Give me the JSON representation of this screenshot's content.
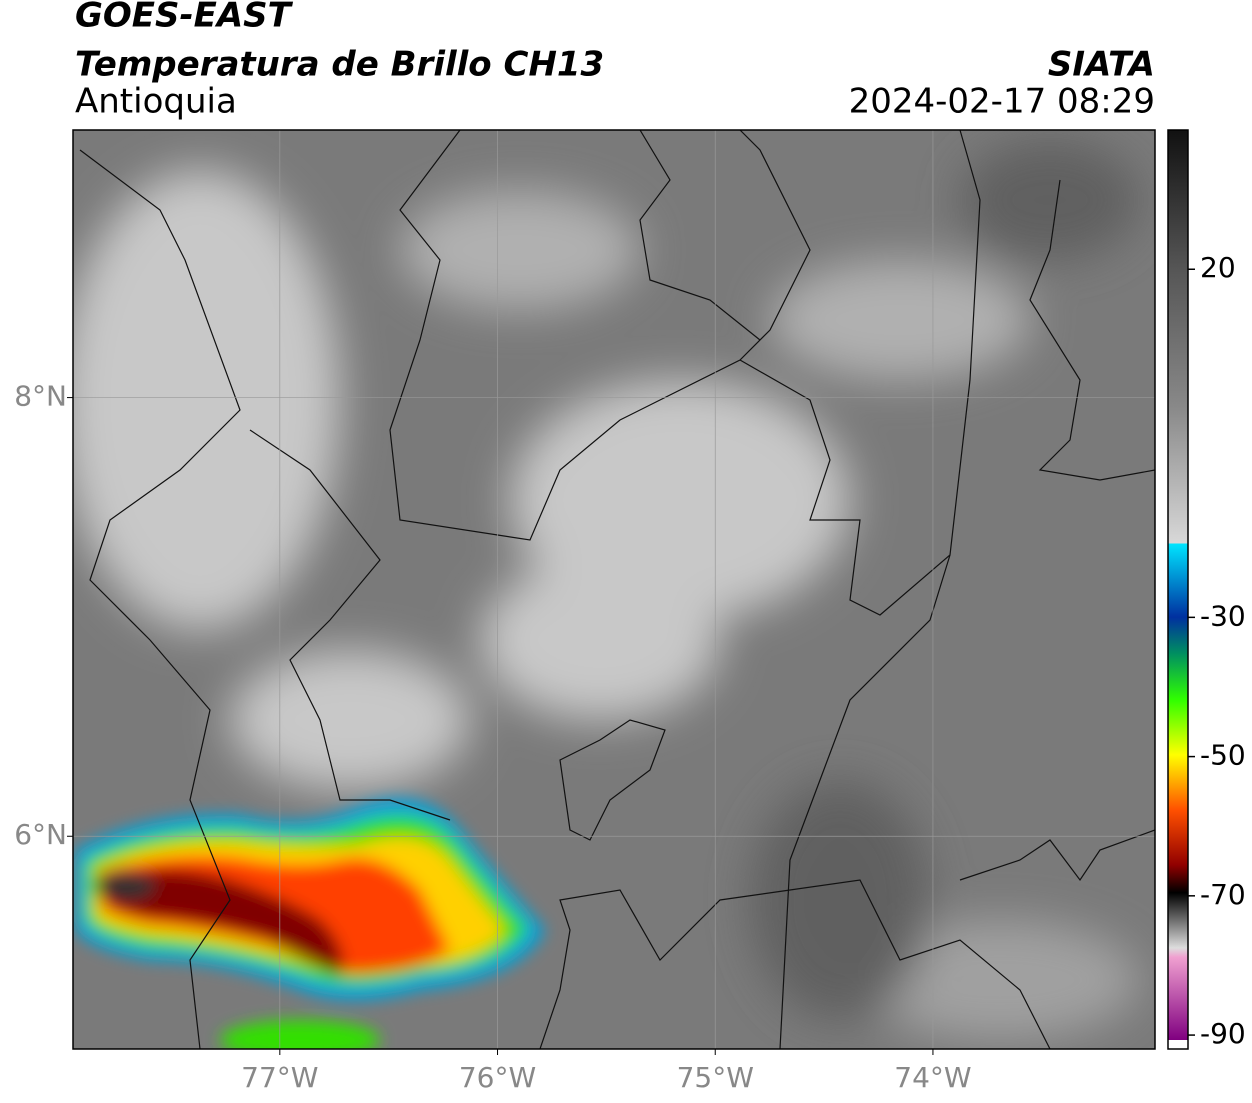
{
  "header": {
    "title": "GOES-EAST",
    "subtitle": "Temperatura de Brillo CH13",
    "region": "Antioquia",
    "source": "SIATA",
    "timestamp": "2024-02-17 08:29"
  },
  "map": {
    "xlim": [
      -77.95,
      -72.98
    ],
    "ylim": [
      5.03,
      9.22
    ],
    "xticks": [
      {
        "value": -77,
        "label": "77°W"
      },
      {
        "value": -76,
        "label": "76°W"
      },
      {
        "value": -75,
        "label": "75°W"
      },
      {
        "value": -74,
        "label": "74°W"
      }
    ],
    "yticks": [
      {
        "value": 6,
        "label": "6°N"
      },
      {
        "value": 8,
        "label": "8°N"
      }
    ],
    "grid": true
  },
  "colorbar": {
    "lim": [
      -92,
      40
    ],
    "ticks": [
      20,
      -30,
      -50,
      -70,
      -90
    ]
  }
}
